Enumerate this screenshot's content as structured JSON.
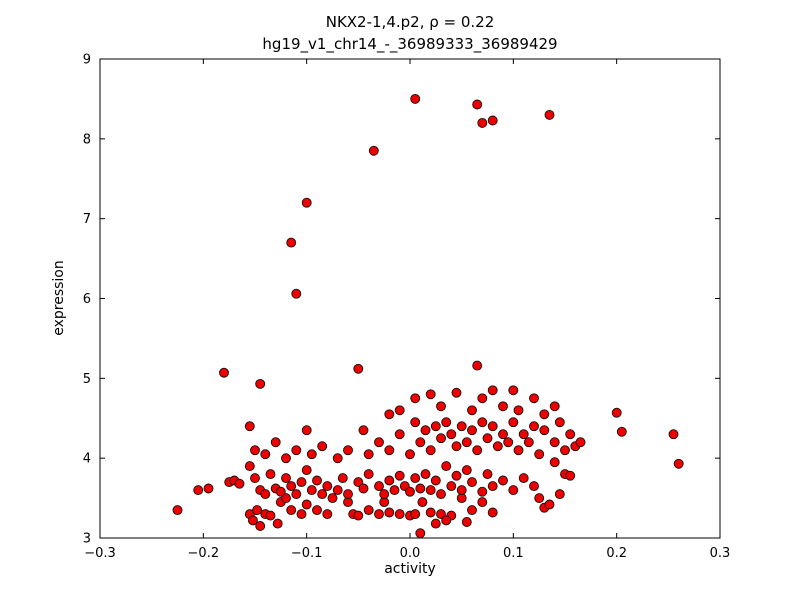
{
  "chart_data": {
    "type": "scatter",
    "title_line1": "NKX2-1,4.p2, ρ = 0.22",
    "title_line2": "hg19_v1_chr14_-_36989333_36989429",
    "xlabel": "activity",
    "ylabel": "expression",
    "xlim": [
      -0.3,
      0.3
    ],
    "ylim": [
      3,
      9
    ],
    "xticks": [
      -0.3,
      -0.2,
      -0.1,
      0.0,
      0.1,
      0.2,
      0.3
    ],
    "xtick_labels": [
      "−0.3",
      "−0.2",
      "−0.1",
      "0.0",
      "0.1",
      "0.2",
      "0.3"
    ],
    "yticks": [
      3,
      4,
      5,
      6,
      7,
      8,
      9
    ],
    "ytick_labels": [
      "3",
      "4",
      "5",
      "6",
      "7",
      "8",
      "9"
    ],
    "grid": false,
    "legend": "none",
    "marker_color": "#ee0000",
    "marker_edge_color": "#111111",
    "marker_radius": 4.5,
    "points": [
      [
        0.005,
        8.5
      ],
      [
        0.065,
        8.43
      ],
      [
        0.08,
        8.23
      ],
      [
        0.07,
        8.2
      ],
      [
        0.135,
        8.3
      ],
      [
        -0.035,
        7.85
      ],
      [
        -0.1,
        7.2
      ],
      [
        -0.115,
        6.7
      ],
      [
        -0.11,
        6.06
      ],
      [
        -0.18,
        5.07
      ],
      [
        -0.145,
        4.93
      ],
      [
        -0.05,
        5.12
      ],
      [
        0.065,
        5.16
      ],
      [
        -0.225,
        3.35
      ],
      [
        -0.205,
        3.6
      ],
      [
        -0.195,
        3.62
      ],
      [
        0.2,
        4.57
      ],
      [
        0.205,
        4.33
      ],
      [
        0.255,
        4.3
      ],
      [
        0.26,
        3.93
      ],
      [
        -0.155,
        3.3
      ],
      [
        -0.152,
        3.22
      ],
      [
        -0.148,
        3.35
      ],
      [
        -0.145,
        3.15
      ],
      [
        -0.14,
        3.3
      ],
      [
        -0.135,
        3.28
      ],
      [
        -0.128,
        3.18
      ],
      [
        -0.125,
        3.45
      ],
      [
        -0.12,
        3.5
      ],
      [
        -0.115,
        3.35
      ],
      [
        -0.105,
        3.3
      ],
      [
        -0.1,
        3.42
      ],
      [
        -0.09,
        3.35
      ],
      [
        -0.08,
        3.3
      ],
      [
        -0.075,
        3.5
      ],
      [
        -0.06,
        3.45
      ],
      [
        -0.055,
        3.3
      ],
      [
        -0.05,
        3.28
      ],
      [
        -0.04,
        3.35
      ],
      [
        -0.03,
        3.3
      ],
      [
        -0.025,
        3.45
      ],
      [
        -0.02,
        3.32
      ],
      [
        -0.01,
        3.3
      ],
      [
        0,
        3.28
      ],
      [
        0.005,
        3.3
      ],
      [
        0.012,
        3.45
      ],
      [
        0.02,
        3.32
      ],
      [
        0.025,
        3.18
      ],
      [
        0.03,
        3.3
      ],
      [
        0.04,
        3.28
      ],
      [
        0.05,
        3.5
      ],
      [
        0.06,
        3.35
      ],
      [
        0.07,
        3.45
      ],
      [
        0.08,
        3.32
      ],
      [
        0.13,
        3.38
      ],
      [
        0.01,
        3.06
      ],
      [
        0.035,
        3.22
      ],
      [
        0.055,
        3.2
      ],
      [
        -0.175,
        3.7
      ],
      [
        -0.17,
        3.72
      ],
      [
        -0.165,
        3.68
      ],
      [
        -0.155,
        3.9
      ],
      [
        -0.15,
        3.75
      ],
      [
        -0.145,
        3.6
      ],
      [
        -0.14,
        3.55
      ],
      [
        -0.135,
        3.8
      ],
      [
        -0.13,
        3.62
      ],
      [
        -0.125,
        3.58
      ],
      [
        -0.12,
        3.75
      ],
      [
        -0.115,
        3.65
      ],
      [
        -0.11,
        3.55
      ],
      [
        -0.105,
        3.7
      ],
      [
        -0.1,
        3.85
      ],
      [
        -0.095,
        3.6
      ],
      [
        -0.09,
        3.72
      ],
      [
        -0.085,
        3.55
      ],
      [
        -0.08,
        3.65
      ],
      [
        -0.07,
        3.6
      ],
      [
        -0.065,
        3.75
      ],
      [
        -0.06,
        3.55
      ],
      [
        -0.05,
        3.7
      ],
      [
        -0.045,
        3.62
      ],
      [
        -0.04,
        3.8
      ],
      [
        -0.03,
        3.65
      ],
      [
        -0.025,
        3.55
      ],
      [
        -0.02,
        3.72
      ],
      [
        -0.015,
        3.6
      ],
      [
        -0.01,
        3.78
      ],
      [
        -0.005,
        3.65
      ],
      [
        0,
        3.58
      ],
      [
        0.005,
        3.75
      ],
      [
        0.01,
        3.62
      ],
      [
        0.015,
        3.8
      ],
      [
        0.02,
        3.6
      ],
      [
        0.025,
        3.72
      ],
      [
        0.03,
        3.55
      ],
      [
        0.035,
        3.9
      ],
      [
        0.04,
        3.65
      ],
      [
        0.045,
        3.78
      ],
      [
        0.05,
        3.6
      ],
      [
        0.055,
        3.85
      ],
      [
        0.06,
        3.7
      ],
      [
        0.07,
        3.58
      ],
      [
        0.075,
        3.8
      ],
      [
        0.08,
        3.65
      ],
      [
        0.09,
        3.72
      ],
      [
        0.1,
        3.6
      ],
      [
        0.11,
        3.75
      ],
      [
        0.12,
        3.65
      ],
      [
        0.135,
        3.42
      ],
      [
        0.14,
        3.95
      ],
      [
        0.15,
        3.8
      ],
      [
        0.155,
        3.78
      ],
      [
        0.145,
        3.55
      ],
      [
        0.125,
        3.5
      ],
      [
        -0.155,
        4.4
      ],
      [
        -0.15,
        4.1
      ],
      [
        -0.14,
        4.05
      ],
      [
        -0.13,
        4.2
      ],
      [
        -0.12,
        4.0
      ],
      [
        -0.11,
        4.1
      ],
      [
        -0.1,
        4.35
      ],
      [
        -0.095,
        4.05
      ],
      [
        -0.085,
        4.15
      ],
      [
        -0.07,
        4.0
      ],
      [
        -0.06,
        4.1
      ],
      [
        -0.045,
        4.35
      ],
      [
        -0.04,
        4.05
      ],
      [
        -0.03,
        4.2
      ],
      [
        -0.02,
        4.1
      ],
      [
        -0.01,
        4.3
      ],
      [
        0,
        4.05
      ],
      [
        0.005,
        4.45
      ],
      [
        0.01,
        4.2
      ],
      [
        0.015,
        4.35
      ],
      [
        0.02,
        4.1
      ],
      [
        0.025,
        4.4
      ],
      [
        0.03,
        4.25
      ],
      [
        0.035,
        4.45
      ],
      [
        0.04,
        4.3
      ],
      [
        0.045,
        4.15
      ],
      [
        0.05,
        4.4
      ],
      [
        0.055,
        4.2
      ],
      [
        0.06,
        4.35
      ],
      [
        0.065,
        4.1
      ],
      [
        0.07,
        4.45
      ],
      [
        0.075,
        4.25
      ],
      [
        0.08,
        4.4
      ],
      [
        0.085,
        4.15
      ],
      [
        0.09,
        4.3
      ],
      [
        0.095,
        4.2
      ],
      [
        0.1,
        4.45
      ],
      [
        0.105,
        4.1
      ],
      [
        0.11,
        4.3
      ],
      [
        0.115,
        4.2
      ],
      [
        0.12,
        4.4
      ],
      [
        0.125,
        4.05
      ],
      [
        0.13,
        4.35
      ],
      [
        0.14,
        4.2
      ],
      [
        0.145,
        4.45
      ],
      [
        0.15,
        4.1
      ],
      [
        0.155,
        4.3
      ],
      [
        0.16,
        4.15
      ],
      [
        0.165,
        4.2
      ],
      [
        0.02,
        4.8
      ],
      [
        0.03,
        4.65
      ],
      [
        0.045,
        4.82
      ],
      [
        0.06,
        4.6
      ],
      [
        0.07,
        4.75
      ],
      [
        0.08,
        4.85
      ],
      [
        0.09,
        4.65
      ],
      [
        0.1,
        4.85
      ],
      [
        0.105,
        4.6
      ],
      [
        0.12,
        4.75
      ],
      [
        0.13,
        4.55
      ],
      [
        0.14,
        4.65
      ],
      [
        0.005,
        4.75
      ],
      [
        -0.01,
        4.6
      ],
      [
        -0.02,
        4.55
      ]
    ]
  }
}
